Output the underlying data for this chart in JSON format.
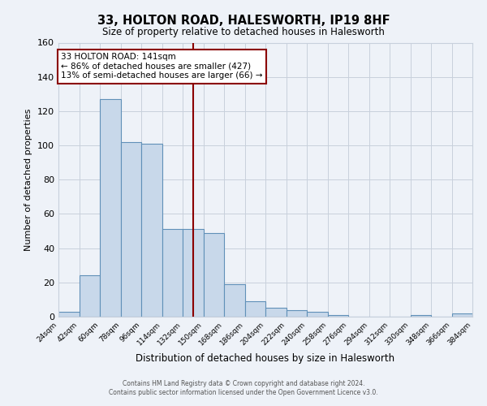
{
  "title": "33, HOLTON ROAD, HALESWORTH, IP19 8HF",
  "subtitle": "Size of property relative to detached houses in Halesworth",
  "xlabel": "Distribution of detached houses by size in Halesworth",
  "ylabel": "Number of detached properties",
  "bin_edges": [
    24,
    42,
    60,
    78,
    96,
    114,
    132,
    150,
    168,
    186,
    204,
    222,
    240,
    258,
    276,
    294,
    312,
    330,
    348,
    366,
    384
  ],
  "bin_counts": [
    3,
    24,
    127,
    102,
    101,
    51,
    51,
    49,
    19,
    9,
    5,
    4,
    3,
    1,
    0,
    0,
    0,
    1,
    0,
    2
  ],
  "bar_facecolor": "#c8d8ea",
  "bar_edgecolor": "#6090b8",
  "property_size": 141,
  "vline_color": "#8b0000",
  "annotation_text": "33 HOLTON ROAD: 141sqm\n← 86% of detached houses are smaller (427)\n13% of semi-detached houses are larger (66) →",
  "annotation_box_edgecolor": "#8b0000",
  "annotation_box_facecolor": "#ffffff",
  "ylim": [
    0,
    160
  ],
  "yticks": [
    0,
    20,
    40,
    60,
    80,
    100,
    120,
    140,
    160
  ],
  "tick_labels": [
    "24sqm",
    "42sqm",
    "60sqm",
    "78sqm",
    "96sqm",
    "114sqm",
    "132sqm",
    "150sqm",
    "168sqm",
    "186sqm",
    "204sqm",
    "222sqm",
    "240sqm",
    "258sqm",
    "276sqm",
    "294sqm",
    "312sqm",
    "330sqm",
    "348sqm",
    "366sqm",
    "384sqm"
  ],
  "footer_line1": "Contains HM Land Registry data © Crown copyright and database right 2024.",
  "footer_line2": "Contains public sector information licensed under the Open Government Licence v3.0.",
  "background_color": "#eef2f8",
  "grid_color": "#c8d0dc",
  "plot_bg_color": "#eef2f8"
}
